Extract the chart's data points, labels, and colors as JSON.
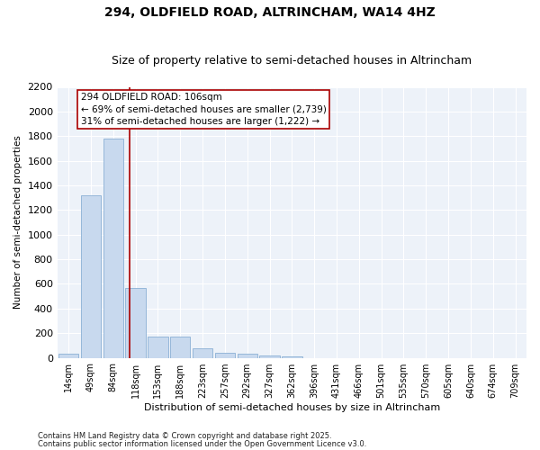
{
  "title": "294, OLDFIELD ROAD, ALTRINCHAM, WA14 4HZ",
  "subtitle": "Size of property relative to semi-detached houses in Altrincham",
  "xlabel": "Distribution of semi-detached houses by size in Altrincham",
  "ylabel": "Number of semi-detached properties",
  "footnote1": "Contains HM Land Registry data © Crown copyright and database right 2025.",
  "footnote2": "Contains public sector information licensed under the Open Government Licence v3.0.",
  "categories": [
    "14sqm",
    "49sqm",
    "84sqm",
    "118sqm",
    "153sqm",
    "188sqm",
    "223sqm",
    "257sqm",
    "292sqm",
    "327sqm",
    "362sqm",
    "396sqm",
    "431sqm",
    "466sqm",
    "501sqm",
    "535sqm",
    "570sqm",
    "605sqm",
    "640sqm",
    "674sqm",
    "709sqm"
  ],
  "values": [
    30,
    1320,
    1780,
    570,
    175,
    175,
    75,
    40,
    35,
    20,
    10,
    0,
    0,
    0,
    0,
    0,
    0,
    0,
    0,
    0,
    0
  ],
  "bar_color": "#c8d9ee",
  "bar_edge_color": "#8ab0d4",
  "vline_x": 2.72,
  "vline_color": "#aa0000",
  "annotation_title": "294 OLDFIELD ROAD: 106sqm",
  "annotation_line1": "← 69% of semi-detached houses are smaller (2,739)",
  "annotation_line2": "31% of semi-detached houses are larger (1,222) →",
  "annotation_box_color": "#ffffff",
  "annotation_box_edge": "#aa0000",
  "ylim": [
    0,
    2200
  ],
  "yticks": [
    0,
    200,
    400,
    600,
    800,
    1000,
    1200,
    1400,
    1600,
    1800,
    2000,
    2200
  ],
  "bg_color": "#edf2f9",
  "title_fontsize": 10,
  "subtitle_fontsize": 9
}
